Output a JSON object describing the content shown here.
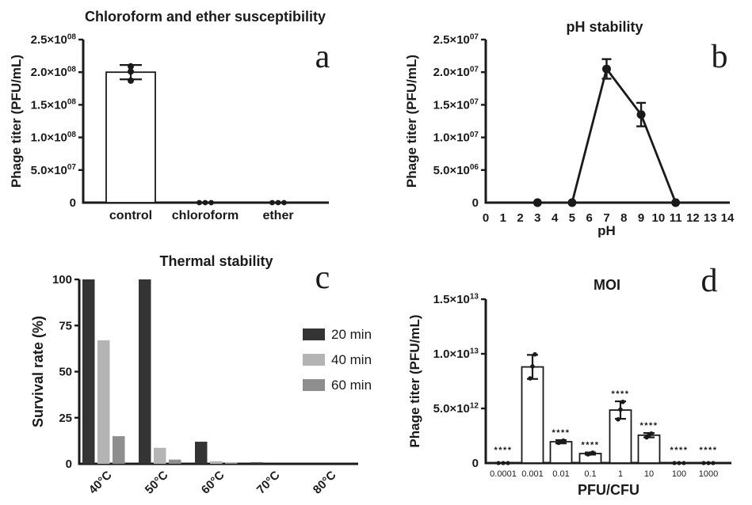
{
  "figure": {
    "background": "#ffffff",
    "ink_color": "#1a1a1a"
  },
  "chart_data": [
    {
      "id": "a",
      "type": "bar",
      "panel_letter": "a",
      "title": "Chloroform and ether susceptibility",
      "ylabel": "Phage titer (PFU/mL)",
      "xlabel": "",
      "categories": [
        "control",
        "chloroform",
        "ether"
      ],
      "values": [
        200000000.0,
        0,
        0
      ],
      "errors": [
        11000000.0,
        0,
        0
      ],
      "points": [
        [
          187000000.0,
          201000000.0,
          209000000.0
        ],
        [
          0,
          0,
          0
        ],
        [
          0,
          0,
          0
        ]
      ],
      "significance": [
        "",
        "",
        ""
      ],
      "ylim": [
        0,
        250000000.0
      ],
      "yticks": [
        {
          "v": 0,
          "label": "0"
        },
        {
          "v": 50000000.0,
          "label": "5.0×10^07"
        },
        {
          "v": 100000000.0,
          "label": "1.0×10^08"
        },
        {
          "v": 150000000.0,
          "label": "1.5×10^08"
        },
        {
          "v": 200000000.0,
          "label": "2.0×10^08"
        },
        {
          "v": 250000000.0,
          "label": "2.5×10^08"
        }
      ],
      "bar_fill": "#ffffff",
      "bar_stroke": "#1a1a1a",
      "grid": false
    },
    {
      "id": "b",
      "type": "line",
      "panel_letter": "b",
      "title": "pH stability",
      "ylabel": "Phage titer (PFU/mL)",
      "xlabel": "pH",
      "x": [
        3,
        5,
        7,
        9,
        11
      ],
      "y": [
        0,
        0,
        20500000.0,
        13500000.0,
        0
      ],
      "errors": [
        0,
        0,
        1500000.0,
        1800000.0,
        0
      ],
      "xlim": [
        0,
        14
      ],
      "xticks": [
        0,
        1,
        2,
        3,
        4,
        5,
        6,
        7,
        8,
        9,
        10,
        11,
        12,
        13,
        14
      ],
      "ylim": [
        0,
        25000000.0
      ],
      "yticks": [
        {
          "v": 0,
          "label": "0"
        },
        {
          "v": 5000000.0,
          "label": "5.0×10^06"
        },
        {
          "v": 10000000.0,
          "label": "1.0×10^07"
        },
        {
          "v": 15000000.0,
          "label": "1.5×10^07"
        },
        {
          "v": 20000000.0,
          "label": "2.0×10^07"
        },
        {
          "v": 25000000.0,
          "label": "2.5×10^07"
        }
      ],
      "line_color": "#1a1a1a",
      "marker": "circle",
      "grid": false
    },
    {
      "id": "c",
      "type": "grouped-bar",
      "panel_letter": "c",
      "title": "Thermal stability",
      "ylabel": "Survival rate (%)",
      "xlabel": "",
      "categories": [
        "40°C",
        "50°C",
        "60°C",
        "70°C",
        "80°C"
      ],
      "series": [
        {
          "name": "20 min",
          "color": "#343434",
          "values": [
            100,
            100,
            12,
            0.8,
            0
          ]
        },
        {
          "name": "40 min",
          "color": "#b4b4b4",
          "values": [
            67,
            8.7,
            1.4,
            0,
            0
          ]
        },
        {
          "name": "60 min",
          "color": "#8e8e8e",
          "values": [
            15,
            2.3,
            0.6,
            0,
            0
          ]
        }
      ],
      "ylim": [
        0,
        100
      ],
      "yticks": [
        {
          "v": 0,
          "label": "0"
        },
        {
          "v": 25,
          "label": "25"
        },
        {
          "v": 50,
          "label": "50"
        },
        {
          "v": 75,
          "label": "75"
        },
        {
          "v": 100,
          "label": "100"
        }
      ],
      "legend_position": "right",
      "grid": false
    },
    {
      "id": "d",
      "type": "bar",
      "panel_letter": "d",
      "title": "MOI",
      "ylabel": "Phage titer (PFU/mL)",
      "xlabel": "PFU/CFU",
      "categories": [
        "0.0001",
        "0.001",
        "0.01",
        "0.1",
        "1",
        "10",
        "100",
        "1000"
      ],
      "values": [
        0,
        8800000000000.0,
        1950000000000.0,
        870000000000.0,
        4850000000000.0,
        2550000000000.0,
        0,
        0
      ],
      "errors": [
        0,
        1100000000000.0,
        150000000000.0,
        100000000000.0,
        800000000000.0,
        200000000000.0,
        0,
        0
      ],
      "points": [
        [
          0,
          0,
          0
        ],
        [
          7750000000000.0,
          8850000000000.0,
          9950000000000.0
        ],
        [
          1850000000000.0,
          1950000000000.0,
          2050000000000.0
        ],
        [
          800000000000.0,
          870000000000.0,
          950000000000.0
        ],
        [
          4000000000000.0,
          4900000000000.0,
          5600000000000.0
        ],
        [
          2350000000000.0,
          2550000000000.0,
          2700000000000.0
        ],
        [
          0,
          0,
          0
        ],
        [
          0,
          0,
          0
        ]
      ],
      "significance": [
        "****",
        "",
        "****",
        "****",
        "****",
        "****",
        "****",
        "****"
      ],
      "ylim": [
        0,
        15000000000000.0
      ],
      "yticks": [
        {
          "v": 0,
          "label": "0"
        },
        {
          "v": 5000000000000.0,
          "label": "5.0×10^12"
        },
        {
          "v": 10000000000000.0,
          "label": "1.0×10^13"
        },
        {
          "v": 15000000000000.0,
          "label": "1.5×10^13"
        }
      ],
      "bar_fill": "#ffffff",
      "bar_stroke": "#1a1a1a",
      "grid": false
    }
  ]
}
